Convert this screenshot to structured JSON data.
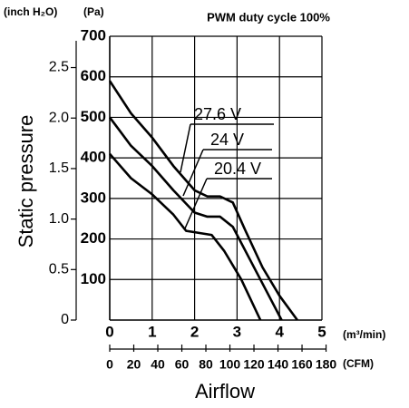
{
  "chart_data": {
    "type": "line",
    "title": "PWM duty cycle 100%",
    "x_label": "Airflow",
    "y_label": "Static pressure",
    "x_unit": "(m³/min)",
    "x2_unit": "(CFM)",
    "y_unit": "(Pa)",
    "y2_unit": "(inch H₂O)",
    "xlim": [
      0,
      5
    ],
    "xticks": [
      0,
      1,
      2,
      3,
      4,
      5
    ],
    "x2lim": [
      0,
      176.57
    ],
    "x2ticks": [
      0,
      20,
      40,
      60,
      80,
      100,
      120,
      140,
      160,
      180
    ],
    "ylim": [
      0,
      700
    ],
    "yticks": [
      100,
      200,
      300,
      400,
      500,
      600,
      700
    ],
    "y2lim": [
      0,
      2.81
    ],
    "y2ticks": [
      0,
      0.5,
      {
        "value": 1,
        "label": "1.0"
      },
      1.5,
      {
        "value": 2,
        "label": "2.0"
      },
      2.5
    ],
    "grid": true,
    "series": [
      {
        "name": "27.6 V",
        "color": "#000000",
        "x": [
          0,
          0.5,
          1,
          1.5,
          2,
          2.3,
          2.6,
          2.9,
          3.2,
          3.6,
          4,
          4.42
        ],
        "values": [
          590,
          510,
          450,
          380,
          320,
          305,
          305,
          290,
          220,
          130,
          60,
          0
        ]
      },
      {
        "name": "24 V",
        "color": "#000000",
        "x": [
          0,
          0.5,
          1,
          1.5,
          2,
          2.3,
          2.6,
          2.9,
          3.3,
          3.7,
          4.05
        ],
        "values": [
          500,
          430,
          380,
          320,
          265,
          255,
          255,
          230,
          150,
          70,
          0
        ]
      },
      {
        "name": "20.4 V",
        "color": "#000000",
        "x": [
          0,
          0.5,
          1,
          1.5,
          1.8,
          2.1,
          2.4,
          2.7,
          3.1,
          3.55
        ],
        "values": [
          410,
          350,
          310,
          260,
          220,
          215,
          210,
          170,
          100,
          0
        ]
      }
    ]
  }
}
